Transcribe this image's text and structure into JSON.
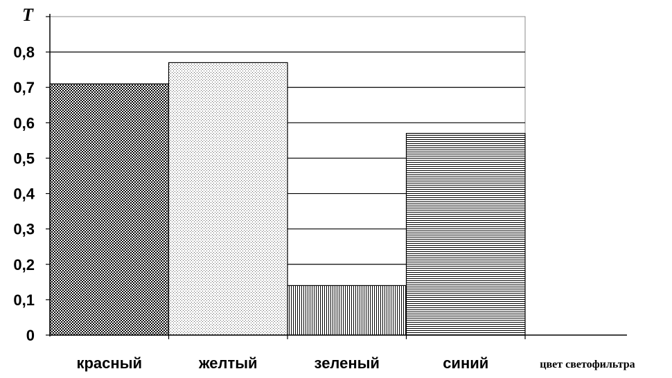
{
  "chart_data": {
    "type": "bar",
    "categories": [
      "красный",
      "желтый",
      "зеленый",
      "синий"
    ],
    "values": [
      0.71,
      0.77,
      0.14,
      0.57
    ],
    "ylabel": "T",
    "xlabel": "цвет светофильтра",
    "ylim": [
      0,
      0.9
    ],
    "yticks": [
      "0",
      "0,1",
      "0,2",
      "0,3",
      "0,4",
      "0,5",
      "0,6",
      "0,7",
      "0,8"
    ],
    "grid": true,
    "legend": "none",
    "patterns": [
      "crosshatch",
      "dots",
      "vertical-lines",
      "horizontal-lines"
    ]
  }
}
